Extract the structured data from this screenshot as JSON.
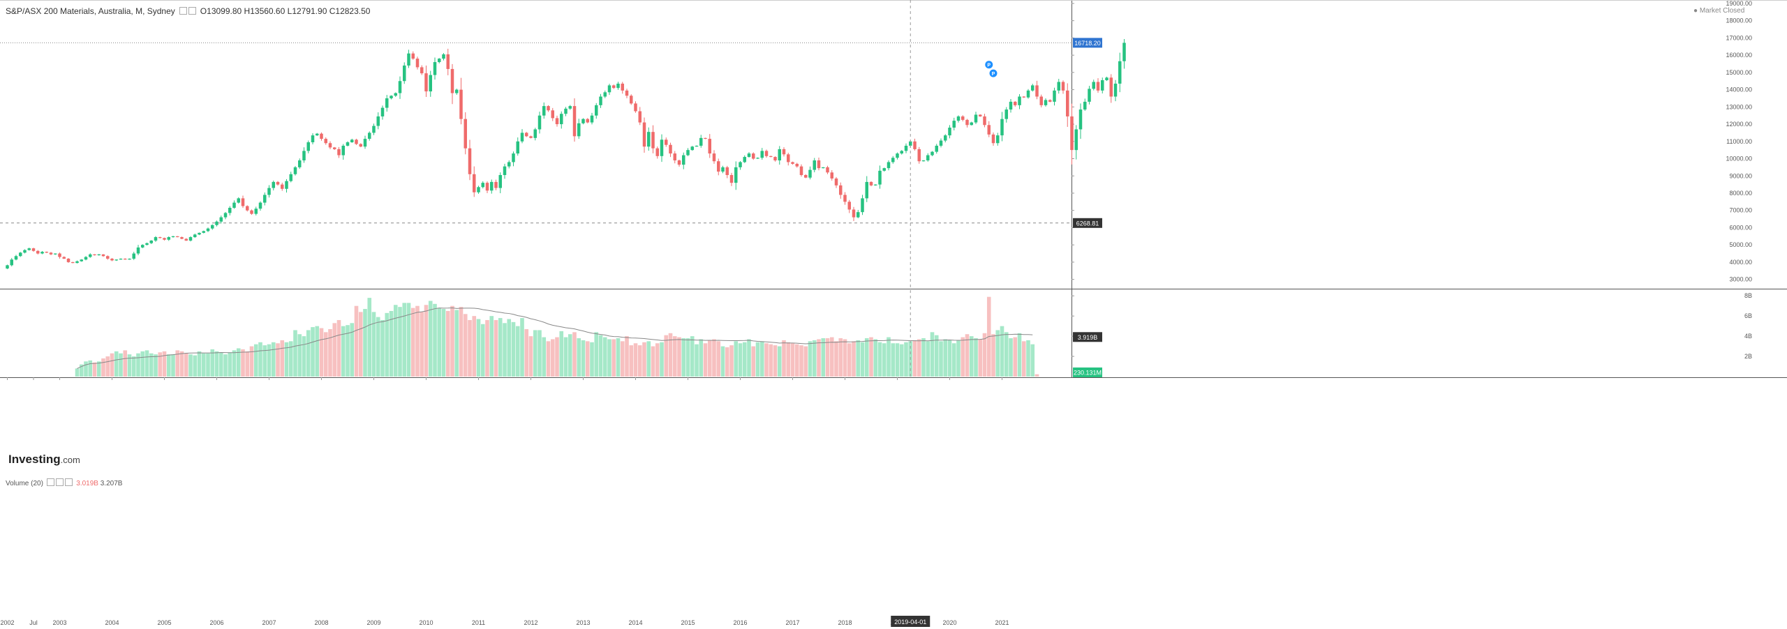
{
  "header": {
    "symbol": "S&P/ASX 200 Materials, Australia, M, Sydney",
    "open_label": "O",
    "open": "13099.80",
    "high_label": "H",
    "high": "13560.60",
    "low_label": "L",
    "low": "12791.90",
    "close_label": "C",
    "close": "12823.50",
    "market_status": "Market Closed",
    "volume_label": "Volume (20)",
    "volume_value": "3.019B",
    "volume_ma_value": "3.207B"
  },
  "logo": {
    "main": "Investing",
    "suffix": ".com"
  },
  "colors": {
    "up": "#26c281",
    "down": "#ef6b6b",
    "up_vol": "#a5e8c8",
    "down_vol": "#f7c0c0",
    "ma": "#888888",
    "price_tag": "#2f74d0",
    "dark_tag": "#333333"
  },
  "chart_data": [
    {
      "type": "candlestick",
      "title": "S&P/ASX 200 Materials, Australia, M, Sydney",
      "ylim": [
        2500,
        19200
      ],
      "y_ticks": [
        3000,
        4000,
        5000,
        6000,
        7000,
        8000,
        9000,
        10000,
        11000,
        12000,
        13000,
        14000,
        15000,
        16000,
        17000,
        18000,
        19000
      ],
      "y_tick_labels": [
        "3000.00",
        "4000.00",
        "5000.00",
        "6000.00",
        "7000.00",
        "8000.00",
        "9000.00",
        "10000.00",
        "11000.00",
        "12000.00",
        "13000.00",
        "14000.00",
        "15000.00",
        "16000.00",
        "17000.00",
        "18000.00",
        "19000.00"
      ],
      "x_labels": [
        "2002",
        "Jul",
        "2003",
        "2004",
        "2005",
        "2006",
        "2007",
        "2008",
        "2009",
        "2010",
        "2011",
        "2012",
        "2013",
        "2014",
        "2015",
        "2016",
        "2017",
        "2018",
        "2019",
        "2020",
        "2021"
      ],
      "x_label_months": [
        0,
        6,
        12,
        24,
        36,
        48,
        60,
        72,
        84,
        96,
        108,
        120,
        132,
        144,
        156,
        168,
        180,
        192,
        204,
        216,
        228
      ],
      "crosshair_label": "2019-04-01",
      "crosshair_month": 207,
      "current_price": "16718.20",
      "current_price_value": 16718.2,
      "level_label": "6268.81",
      "level_value": 6268.81,
      "annotation_markers": [
        {
          "month": 225,
          "value": 15450,
          "label": "P"
        },
        {
          "month": 226,
          "value": 14950,
          "label": "P"
        }
      ],
      "closes": [
        3820,
        4150,
        4350,
        4550,
        4700,
        4800,
        4650,
        4500,
        4600,
        4550,
        4450,
        4500,
        4300,
        4200,
        4000,
        3950,
        4050,
        4150,
        4300,
        4450,
        4400,
        4450,
        4350,
        4200,
        4100,
        4150,
        4200,
        4150,
        4200,
        4500,
        4850,
        5000,
        5100,
        5250,
        5450,
        5400,
        5300,
        5450,
        5500,
        5450,
        5350,
        5250,
        5450,
        5600,
        5700,
        5800,
        5950,
        6150,
        6350,
        6600,
        6850,
        7150,
        7450,
        7700,
        7250,
        7000,
        6800,
        7100,
        7450,
        7900,
        8300,
        8650,
        8500,
        8250,
        8700,
        9100,
        9500,
        9900,
        10450,
        10950,
        11350,
        11450,
        11150,
        10900,
        10650,
        10550,
        10200,
        10750,
        10950,
        11100,
        10850,
        10700,
        11150,
        11500,
        11900,
        12450,
        12950,
        13500,
        13650,
        13800,
        14500,
        15400,
        16100,
        15800,
        15300,
        14950,
        13900,
        14850,
        15600,
        15800,
        16050,
        15200,
        13800,
        14000,
        12300,
        10600,
        9100,
        8050,
        8350,
        8600,
        8150,
        8650,
        8300,
        9050,
        9550,
        9800,
        10300,
        11000,
        11500,
        11300,
        11200,
        11700,
        12500,
        13050,
        12800,
        12350,
        12000,
        12600,
        12900,
        13050,
        11300,
        12050,
        12300,
        12100,
        12500,
        13100,
        13600,
        13850,
        14250,
        14100,
        14350,
        13950,
        13650,
        13200,
        12750,
        12100,
        10700,
        11550,
        10600,
        10150,
        11100,
        10800,
        10300,
        9900,
        9650,
        10200,
        10500,
        10700,
        10750,
        11200,
        11150,
        10300,
        9850,
        9250,
        9500,
        9050,
        8600,
        9500,
        9800,
        10100,
        10300,
        10000,
        10050,
        10450,
        10150,
        10100,
        9900,
        10550,
        10250,
        9800,
        9700,
        9550,
        9050,
        8900,
        9350,
        9900,
        9450,
        9500,
        9200,
        8850,
        8450,
        7900,
        7500,
        7050,
        6600,
        6900,
        7700,
        8650,
        8450,
        8500,
        9300,
        9450,
        9800,
        10050,
        10300,
        10450,
        10750,
        11000,
        10550,
        9850,
        9900,
        10200,
        10400,
        10750,
        11050,
        11350,
        11800,
        12200,
        12450,
        12250,
        11950,
        12100,
        12550,
        12450,
        11950,
        11400,
        10900,
        11350,
        12300,
        12850,
        13300,
        13100,
        13600,
        13550,
        13950,
        14250,
        13600,
        13100,
        13400,
        13300,
        13950,
        14450,
        13950,
        12450,
        10500,
        11700,
        12850,
        13300,
        14050,
        14450,
        13950,
        14550,
        14700,
        13600,
        14350,
        15650,
        16718
      ]
    },
    {
      "type": "bar",
      "title": "Volume (20)",
      "ylabel": "",
      "ylim": [
        0,
        8.5
      ],
      "y_ticks": [
        2,
        4,
        6,
        8
      ],
      "y_tick_labels": [
        "2B",
        "4B",
        "6B",
        "8B"
      ],
      "volume_last_label": "3.919B",
      "volume_zero_label": "230.131M",
      "volume_start_month": 16,
      "volumes": [
        0.8,
        1.2,
        1.5,
        1.6,
        1.4,
        1.5,
        1.8,
        2.0,
        2.3,
        2.5,
        2.3,
        2.6,
        2.2,
        2.0,
        2.3,
        2.5,
        2.6,
        2.3,
        2.2,
        2.4,
        2.5,
        2.2,
        2.2,
        2.6,
        2.5,
        2.3,
        2.2,
        2.1,
        2.5,
        2.3,
        2.3,
        2.7,
        2.5,
        2.4,
        2.2,
        2.4,
        2.6,
        2.8,
        2.7,
        2.5,
        3.0,
        3.2,
        3.4,
        3.1,
        3.2,
        3.4,
        3.3,
        3.6,
        3.4,
        3.5,
        4.6,
        4.2,
        4.0,
        4.6,
        4.9,
        5.0,
        4.8,
        4.4,
        4.7,
        5.3,
        5.6,
        5.0,
        5.1,
        5.3,
        7.0,
        6.4,
        6.7,
        7.8,
        6.4,
        5.9,
        5.6,
        6.3,
        6.5,
        7.1,
        6.9,
        7.3,
        7.3,
        6.8,
        7.0,
        6.4,
        7.1,
        7.5,
        7.2,
        6.8,
        6.7,
        6.5,
        7.0,
        6.6,
        6.9,
        6.2,
        5.6,
        6.0,
        5.7,
        5.2,
        5.6,
        6.0,
        5.6,
        5.8,
        5.3,
        5.7,
        5.4,
        5.0,
        5.8,
        4.7,
        4.0,
        4.6,
        4.6,
        3.9,
        3.5,
        3.7,
        3.9,
        4.5,
        3.9,
        4.2,
        4.4,
        3.8,
        3.6,
        3.5,
        3.4,
        4.4,
        4.1,
        3.9,
        3.7,
        3.7,
        3.8,
        3.5,
        4.0,
        3.1,
        3.3,
        3.1,
        3.4,
        3.5,
        3.0,
        3.3,
        3.4,
        4.1,
        4.3,
        4.0,
        3.9,
        3.8,
        3.8,
        4.0,
        3.2,
        3.7,
        3.3,
        3.6,
        3.7,
        3.5,
        3.0,
        2.9,
        3.1,
        3.5,
        3.3,
        3.4,
        3.7,
        3.0,
        3.4,
        3.5,
        3.3,
        3.2,
        3.1,
        3.0,
        3.6,
        3.4,
        3.3,
        3.2,
        3.1,
        3.0,
        3.5,
        3.6,
        3.7,
        3.8,
        3.8,
        3.9,
        3.5,
        3.8,
        3.7,
        3.3,
        3.5,
        3.6,
        3.4,
        3.8,
        3.9,
        3.7,
        3.4,
        3.3,
        3.9,
        3.3,
        3.3,
        3.2,
        3.4,
        3.5,
        3.6,
        3.7,
        3.8,
        3.5,
        4.4,
        4.1,
        3.5,
        3.7,
        3.6,
        3.3,
        3.6,
        3.9,
        4.2,
        4.0,
        3.8,
        3.7,
        4.3,
        7.9,
        4.2,
        4.6,
        5.0,
        4.4,
        3.8,
        3.9,
        4.3,
        3.5,
        3.6,
        3.2,
        0.23
      ]
    }
  ]
}
